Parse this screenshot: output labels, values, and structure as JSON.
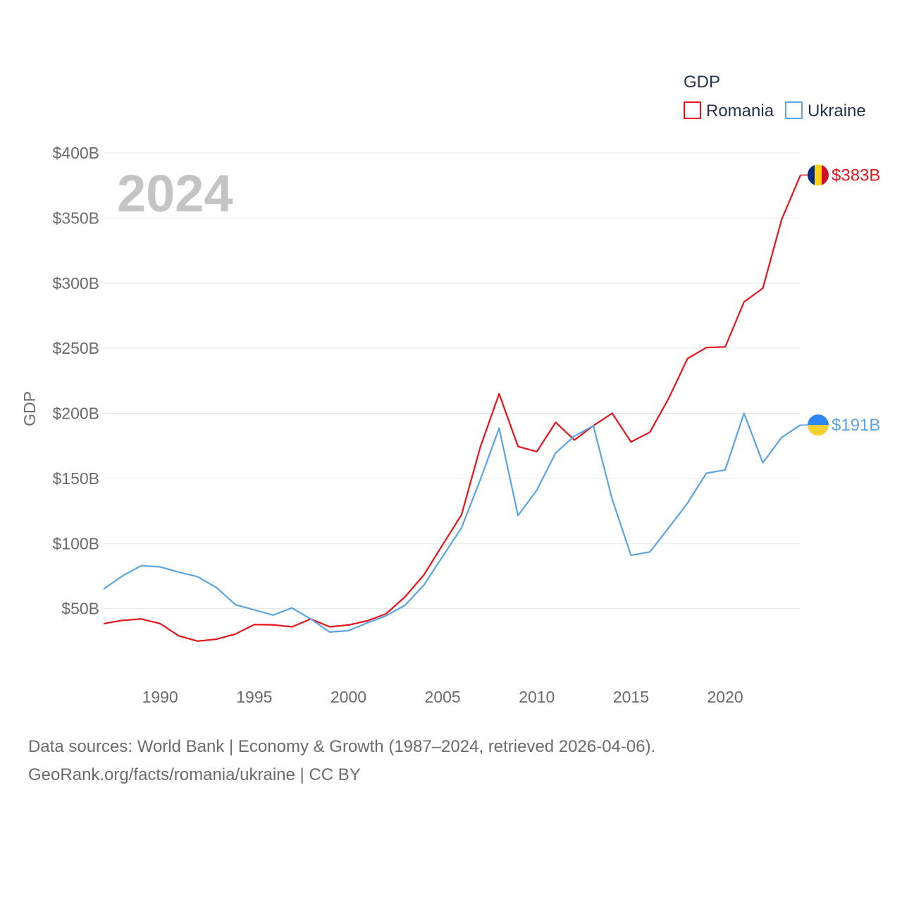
{
  "chart_data": {
    "type": "line",
    "title": "GDP",
    "current_year_label": "2024",
    "ylabel": "GDP",
    "xlabel": "",
    "ylim": [
      0,
      400
    ],
    "xlim": [
      1987,
      2024
    ],
    "y_ticks": [
      {
        "value": 50,
        "label": "$50B"
      },
      {
        "value": 100,
        "label": "$100B"
      },
      {
        "value": 150,
        "label": "$150B"
      },
      {
        "value": 200,
        "label": "$200B"
      },
      {
        "value": 250,
        "label": "$250B"
      },
      {
        "value": 300,
        "label": "$300B"
      },
      {
        "value": 350,
        "label": "$350B"
      },
      {
        "value": 400,
        "label": "$400B"
      }
    ],
    "x_ticks": [
      {
        "value": 1990,
        "label": "1990"
      },
      {
        "value": 1995,
        "label": "1995"
      },
      {
        "value": 2000,
        "label": "2000"
      },
      {
        "value": 2005,
        "label": "2005"
      },
      {
        "value": 2010,
        "label": "2010"
      },
      {
        "value": 2015,
        "label": "2015"
      },
      {
        "value": 2020,
        "label": "2020"
      }
    ],
    "x": [
      1987,
      1988,
      1989,
      1990,
      1991,
      1992,
      1993,
      1994,
      1995,
      1996,
      1997,
      1998,
      1999,
      2000,
      2001,
      2002,
      2003,
      2004,
      2005,
      2006,
      2007,
      2008,
      2009,
      2010,
      2011,
      2012,
      2013,
      2014,
      2015,
      2016,
      2017,
      2018,
      2019,
      2020,
      2021,
      2022,
      2023,
      2024
    ],
    "series": [
      {
        "name": "Romania",
        "color": "#e8141c",
        "end_label": "$383B",
        "flag": "romania-flag",
        "values": [
          38.5,
          41,
          42,
          38.5,
          29,
          25,
          26.5,
          30.5,
          37.7,
          37.5,
          36,
          42,
          36,
          37.4,
          40.6,
          46,
          59,
          75.8,
          99,
          122,
          174,
          215,
          174.5,
          170.5,
          193,
          179.5,
          190.5,
          200,
          178,
          185.5,
          211.5,
          242,
          250.5,
          251,
          285.5,
          296,
          349,
          383
        ]
      },
      {
        "name": "Ukraine",
        "color": "#5aa4e6",
        "end_label": "$191B",
        "flag": "ukraine-flag",
        "values": [
          65,
          75,
          83,
          82,
          78,
          74.5,
          66,
          53,
          49,
          45,
          50.5,
          42,
          32,
          33,
          39,
          44.5,
          52.5,
          68,
          90,
          112,
          149,
          188.5,
          121.5,
          141,
          169.5,
          182.5,
          190.5,
          134,
          91,
          93.5,
          112,
          131,
          154,
          156.5,
          200,
          162,
          181.5,
          191
        ]
      }
    ],
    "legend": {
      "title": "GDP",
      "position": "top-right"
    }
  },
  "footer": {
    "line1": "Data sources: World Bank | Economy & Growth (1987–2024, retrieved 2026-04-06).",
    "line2": "GeoRank.org/facts/romania/ukraine | CC BY"
  }
}
